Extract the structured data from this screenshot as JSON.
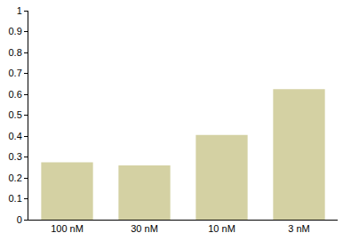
{
  "chart_data": {
    "type": "bar",
    "categories": [
      "100 nM",
      "30 nM",
      "10 nM",
      "3 nM"
    ],
    "values": [
      0.275,
      0.26,
      0.405,
      0.625
    ],
    "color": "#d4d1a3",
    "ylim": [
      0,
      1
    ],
    "yticks": [
      0,
      0.1,
      0.2,
      0.3,
      0.4,
      0.5,
      0.6,
      0.7,
      0.8,
      0.9,
      1
    ],
    "grid": false
  }
}
